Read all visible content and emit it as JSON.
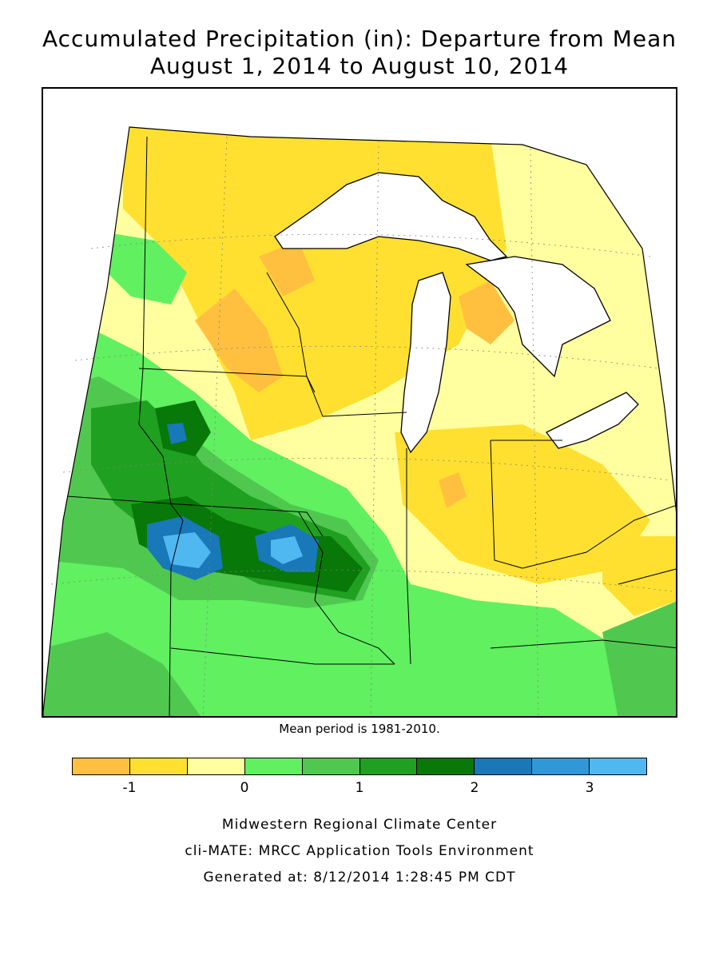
{
  "title_line1": "Accumulated Precipitation (in): Departure from Mean",
  "title_line2": "August 1, 2014 to August 10, 2014",
  "mean_period_note": "Mean period is 1981-2010.",
  "legend": {
    "colors": [
      "#FFC040",
      "#FFE030",
      "#FFFFA0",
      "#60F060",
      "#50C850",
      "#20A020",
      "#087808",
      "#1878B8",
      "#3098D8",
      "#50B8F0"
    ],
    "bins": [
      -1.5,
      -1,
      -0.5,
      0,
      0.5,
      1,
      1.5,
      2,
      2.5,
      3,
      3.5
    ],
    "tick_values": [
      -1,
      0,
      1,
      2,
      3
    ],
    "tick_labels": [
      "-1",
      "0",
      "1",
      "2",
      "3"
    ]
  },
  "map": {
    "region": "Midwest United States",
    "background_color": "#FFFFA0",
    "lake_color": "#FFFFFF",
    "outline_color": "#000000"
  },
  "credits": {
    "line1": "Midwestern Regional Climate Center",
    "line2": "cli-MATE: MRCC Application Tools Environment",
    "line3": "Generated at: 8/12/2014 1:28:45 PM CDT"
  }
}
